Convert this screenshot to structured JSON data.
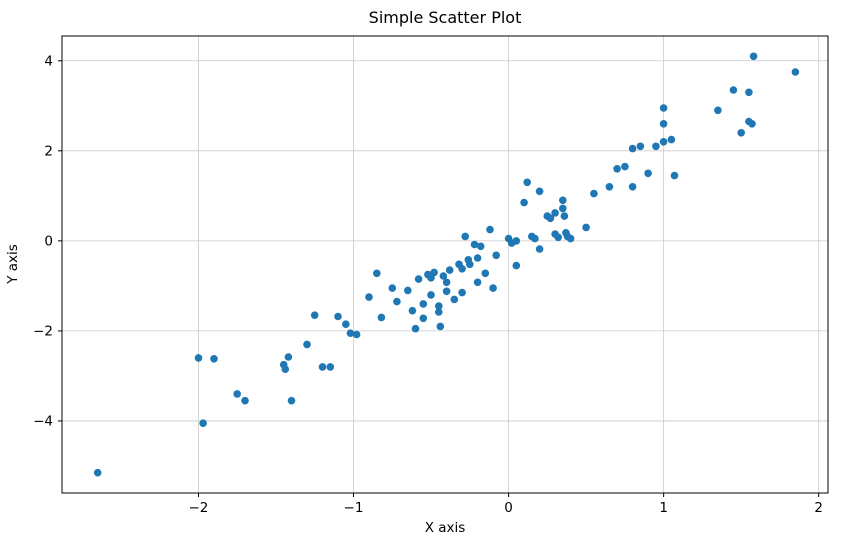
{
  "chart_data": {
    "type": "scatter",
    "title": "Simple Scatter Plot",
    "xlabel": "X axis",
    "ylabel": "Y axis",
    "xlim": [
      -2.88,
      2.06
    ],
    "ylim": [
      -5.6,
      4.55
    ],
    "xticks": [
      -2,
      -1,
      0,
      1,
      2
    ],
    "xtick_labels": [
      "−2",
      "−1",
      "0",
      "1",
      "2"
    ],
    "yticks": [
      -4,
      -2,
      0,
      2,
      4
    ],
    "ytick_labels": [
      "−4",
      "−2",
      "0",
      "2",
      "4"
    ],
    "grid": true,
    "legend": "none",
    "marker_color": "#1f77b4",
    "grid_color": "#c9c9c9",
    "spine_color": "#000000",
    "points": [
      [
        -2.65,
        -5.15
      ],
      [
        -2.0,
        -2.6
      ],
      [
        -1.9,
        -2.62
      ],
      [
        -1.97,
        -4.05
      ],
      [
        -1.75,
        -3.4
      ],
      [
        -1.7,
        -3.55
      ],
      [
        -1.45,
        -2.75
      ],
      [
        -1.44,
        -2.85
      ],
      [
        -1.42,
        -2.58
      ],
      [
        -1.4,
        -3.55
      ],
      [
        -1.3,
        -2.3
      ],
      [
        -1.25,
        -1.65
      ],
      [
        -1.2,
        -2.8
      ],
      [
        -1.15,
        -2.8
      ],
      [
        -1.1,
        -1.68
      ],
      [
        -1.05,
        -1.85
      ],
      [
        -1.02,
        -2.05
      ],
      [
        -0.98,
        -2.08
      ],
      [
        -0.9,
        -1.25
      ],
      [
        -0.85,
        -0.72
      ],
      [
        -0.82,
        -1.7
      ],
      [
        -0.75,
        -1.05
      ],
      [
        -0.72,
        -1.35
      ],
      [
        -0.65,
        -1.1
      ],
      [
        -0.62,
        -1.55
      ],
      [
        -0.6,
        -1.95
      ],
      [
        -0.58,
        -0.85
      ],
      [
        -0.55,
        -1.4
      ],
      [
        -0.55,
        -1.72
      ],
      [
        -0.52,
        -0.75
      ],
      [
        -0.5,
        -0.82
      ],
      [
        -0.5,
        -1.2
      ],
      [
        -0.48,
        -0.7
      ],
      [
        -0.45,
        -1.45
      ],
      [
        -0.45,
        -1.58
      ],
      [
        -0.44,
        -1.9
      ],
      [
        -0.42,
        -0.78
      ],
      [
        -0.4,
        -0.92
      ],
      [
        -0.4,
        -1.12
      ],
      [
        -0.38,
        -0.65
      ],
      [
        -0.35,
        -1.3
      ],
      [
        -0.32,
        -0.52
      ],
      [
        -0.3,
        -0.62
      ],
      [
        -0.3,
        -1.15
      ],
      [
        -0.28,
        0.1
      ],
      [
        -0.26,
        -0.42
      ],
      [
        -0.25,
        -0.52
      ],
      [
        -0.22,
        -0.08
      ],
      [
        -0.2,
        -0.38
      ],
      [
        -0.2,
        -0.92
      ],
      [
        -0.18,
        -0.12
      ],
      [
        -0.15,
        -0.72
      ],
      [
        -0.12,
        0.25
      ],
      [
        -0.1,
        -1.05
      ],
      [
        -0.08,
        -0.32
      ],
      [
        0.0,
        0.05
      ],
      [
        0.02,
        -0.05
      ],
      [
        0.05,
        0.0
      ],
      [
        0.05,
        -0.55
      ],
      [
        0.1,
        0.85
      ],
      [
        0.12,
        1.3
      ],
      [
        0.15,
        0.1
      ],
      [
        0.17,
        0.05
      ],
      [
        0.2,
        1.1
      ],
      [
        0.2,
        -0.18
      ],
      [
        0.25,
        0.55
      ],
      [
        0.27,
        0.5
      ],
      [
        0.3,
        0.62
      ],
      [
        0.3,
        0.15
      ],
      [
        0.32,
        0.08
      ],
      [
        0.35,
        0.9
      ],
      [
        0.35,
        0.72
      ],
      [
        0.36,
        0.55
      ],
      [
        0.37,
        0.18
      ],
      [
        0.38,
        0.1
      ],
      [
        0.4,
        0.05
      ],
      [
        0.5,
        0.3
      ],
      [
        0.55,
        1.05
      ],
      [
        0.65,
        1.2
      ],
      [
        0.7,
        1.6
      ],
      [
        0.75,
        1.65
      ],
      [
        0.8,
        2.05
      ],
      [
        0.8,
        1.2
      ],
      [
        0.85,
        2.1
      ],
      [
        0.9,
        1.5
      ],
      [
        0.95,
        2.1
      ],
      [
        1.0,
        2.95
      ],
      [
        1.0,
        2.6
      ],
      [
        1.0,
        2.2
      ],
      [
        1.05,
        2.25
      ],
      [
        1.07,
        1.45
      ],
      [
        1.35,
        2.9
      ],
      [
        1.45,
        3.35
      ],
      [
        1.5,
        2.4
      ],
      [
        1.55,
        3.3
      ],
      [
        1.55,
        2.65
      ],
      [
        1.57,
        2.6
      ],
      [
        1.58,
        4.1
      ],
      [
        1.85,
        3.75
      ]
    ]
  }
}
